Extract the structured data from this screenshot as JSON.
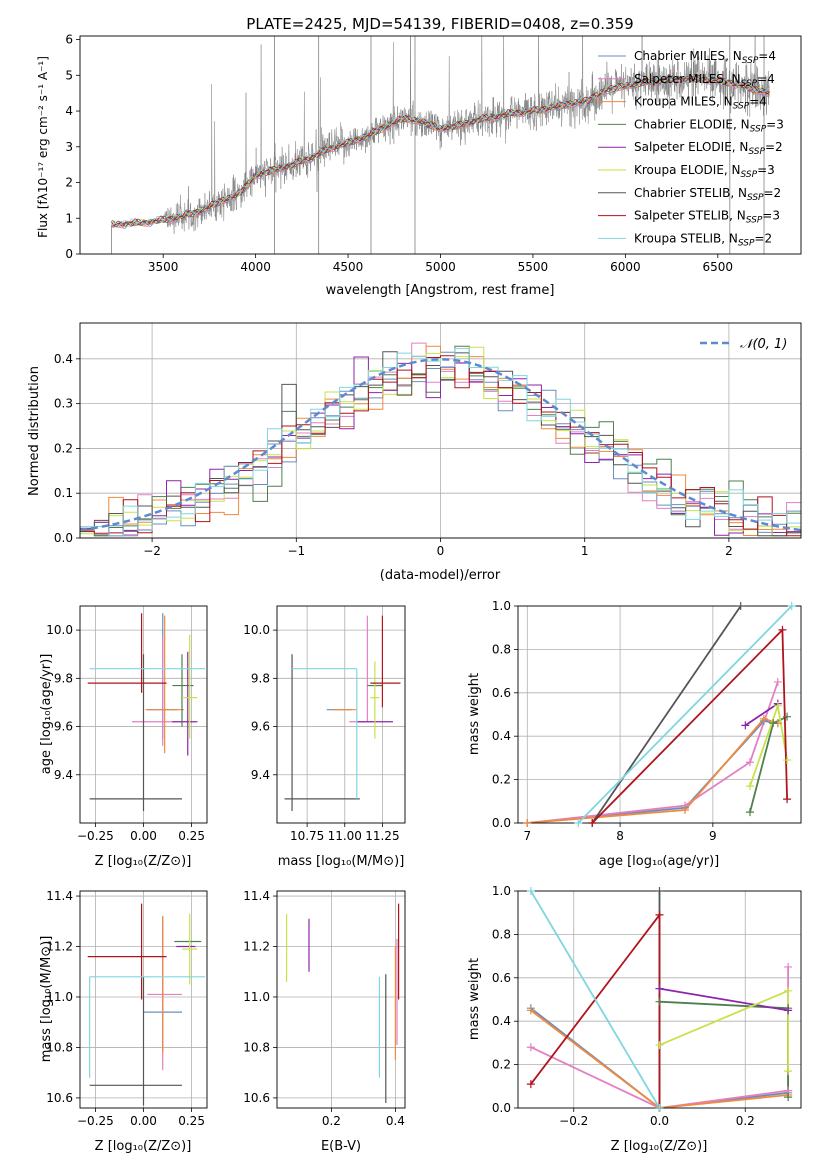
{
  "colors": {
    "chabrier_miles": "#6c8ebf",
    "salpeter_miles": "#e37fc2",
    "kroupa_miles": "#f08a3c",
    "chabrier_elodie": "#4f7f4f",
    "salpeter_elodie": "#8e24aa",
    "kroupa_elodie": "#c7e24a",
    "chabrier_stelib": "#555555",
    "salpeter_stelib": "#b0141c",
    "kroupa_stelib": "#7fd6e0",
    "gaussian": "#5b8bd0",
    "data": "#808080"
  },
  "chart_data": [
    {
      "id": "spectrum",
      "type": "line",
      "title": "PLATE=2425, MJD=54139, FIBERID=0408, z=0.359",
      "xlabel": "wavelength [Angstrom, rest frame]",
      "ylabel": "Flux [fλ10⁻¹⁷ erg cm⁻² s⁻¹ A⁻¹]",
      "xlim": [
        3050,
        6950
      ],
      "ylim": [
        0,
        6.1
      ],
      "xticks": [
        3500,
        4000,
        4500,
        5000,
        5500,
        6000,
        6500
      ],
      "yticks": [
        0,
        1,
        2,
        3,
        4,
        5,
        6
      ],
      "legend": [
        "Chabrier MILES, N_SSP=4",
        "Salpeter MILES, N_SSP=4",
        "Kroupa MILES, N_SSP=4",
        "Chabrier ELODIE, N_SSP=3",
        "Salpeter ELODIE, N_SSP=2",
        "Kroupa ELODIE, N_SSP=3",
        "Chabrier STELIB, N_SSP=2",
        "Salpeter STELIB, N_SSP=3",
        "Kroupa STELIB, N_SSP=2"
      ],
      "legend_position": "upper right",
      "continuum": {
        "x": [
          3220,
          3300,
          3400,
          3500,
          3600,
          3700,
          3800,
          3900,
          3950,
          4000,
          4100,
          4200,
          4300,
          4400,
          4500,
          4600,
          4700,
          4800,
          4900,
          5000,
          5100,
          5200,
          5300,
          5400,
          5500,
          5600,
          5700,
          5800,
          5900,
          6000,
          6100,
          6200,
          6300,
          6400,
          6500,
          6600,
          6700,
          6780
        ],
        "y": [
          0.82,
          0.85,
          0.88,
          0.95,
          1.05,
          1.2,
          1.45,
          1.65,
          1.9,
          2.2,
          2.35,
          2.5,
          2.7,
          2.95,
          3.1,
          3.3,
          3.55,
          3.8,
          3.7,
          3.5,
          3.6,
          3.75,
          3.85,
          3.95,
          4.0,
          4.1,
          4.2,
          4.3,
          4.6,
          4.7,
          4.8,
          4.85,
          4.9,
          4.9,
          4.85,
          4.75,
          4.6,
          4.5
        ]
      },
      "vlines": [
        4102,
        4341,
        4624,
        4862,
        6565,
        6750
      ],
      "grid": false
    },
    {
      "id": "residuals",
      "type": "histogram",
      "xlabel": "(data-model)/error",
      "ylabel": "Normed distribution",
      "xlim": [
        -2.5,
        2.5
      ],
      "ylim": [
        0,
        0.48
      ],
      "xticks": [
        -2,
        -1,
        0,
        1,
        2
      ],
      "yticks": [
        0.0,
        0.1,
        0.2,
        0.3,
        0.4
      ],
      "bin_width": 0.1,
      "legend": [
        "𝒩(0, 1)"
      ],
      "legend_position": "upper right",
      "grid": true
    },
    {
      "id": "age_vs_Z",
      "type": "errorbar",
      "xlabel": "Z [log₁₀(Z/Z⊙)]",
      "ylabel": "age  [log₁₀(age/yr)]",
      "xlim": [
        -0.33,
        0.33
      ],
      "ylim": [
        9.2,
        10.1
      ],
      "xticks": [
        -0.25,
        0.0,
        0.25
      ],
      "yticks": [
        9.4,
        9.6,
        9.8,
        10.0
      ],
      "grid": true
    },
    {
      "id": "age_vs_mass",
      "type": "errorbar",
      "xlabel": "mass [log₁₀(M/M⊙)]",
      "ylabel": "",
      "xlim": [
        10.55,
        11.4
      ],
      "ylim": [
        9.2,
        10.1
      ],
      "xticks": [
        10.75,
        11.0,
        11.25
      ],
      "yticks": [
        9.4,
        9.6,
        9.8,
        10.0
      ],
      "grid": true
    },
    {
      "id": "massweight_vs_age",
      "type": "line",
      "xlabel": "age  [log₁₀(age/yr)]",
      "ylabel": "mass weight",
      "xlim": [
        6.9,
        9.95
      ],
      "ylim": [
        0,
        1.0
      ],
      "xticks": [
        7,
        8,
        9
      ],
      "yticks": [
        0.0,
        0.2,
        0.4,
        0.6,
        0.8,
        1.0
      ],
      "grid": true,
      "series": [
        {
          "key": "chabrier_miles",
          "x": [
            7.0,
            8.7,
            9.55,
            9.7
          ],
          "y": [
            0.0,
            0.07,
            0.47,
            0.46
          ]
        },
        {
          "key": "salpeter_miles",
          "x": [
            7.0,
            8.7,
            9.4,
            9.7
          ],
          "y": [
            0.0,
            0.08,
            0.28,
            0.65
          ]
        },
        {
          "key": "kroupa_miles",
          "x": [
            7.0,
            8.7,
            9.55,
            9.7
          ],
          "y": [
            0.0,
            0.06,
            0.48,
            0.46
          ]
        },
        {
          "key": "chabrier_elodie",
          "x": [
            9.4,
            9.65,
            9.8
          ],
          "y": [
            0.05,
            0.46,
            0.49
          ]
        },
        {
          "key": "salpeter_elodie",
          "x": [
            9.35,
            9.7
          ],
          "y": [
            0.45,
            0.55
          ]
        },
        {
          "key": "kroupa_elodie",
          "x": [
            9.4,
            9.7,
            9.8
          ],
          "y": [
            0.17,
            0.54,
            0.29
          ]
        },
        {
          "key": "chabrier_stelib",
          "x": [
            7.7,
            9.3
          ],
          "y": [
            0.0,
            1.0
          ]
        },
        {
          "key": "salpeter_stelib",
          "x": [
            7.7,
            9.75,
            9.8
          ],
          "y": [
            0.0,
            0.89,
            0.11
          ]
        },
        {
          "key": "kroupa_stelib",
          "x": [
            7.55,
            9.85
          ],
          "y": [
            0.0,
            1.0
          ]
        }
      ]
    },
    {
      "id": "mass_vs_Z",
      "type": "errorbar",
      "xlabel": "Z [log₁₀(Z/Z⊙)]",
      "ylabel": "mass [log₁₀(M/M⊙)]",
      "xlim": [
        -0.33,
        0.33
      ],
      "ylim": [
        10.56,
        11.42
      ],
      "xticks": [
        -0.25,
        0.0,
        0.25
      ],
      "yticks": [
        10.6,
        10.8,
        11.0,
        11.2,
        11.4
      ],
      "grid": true
    },
    {
      "id": "mass_vs_ebv",
      "type": "errorbar",
      "xlabel": "E(B-V)",
      "ylabel": "",
      "xlim": [
        0.03,
        0.43
      ],
      "ylim": [
        10.56,
        11.42
      ],
      "xticks": [
        0.2,
        0.4
      ],
      "yticks": [
        10.6,
        10.8,
        11.0,
        11.2,
        11.4
      ],
      "grid": true
    },
    {
      "id": "massweight_vs_Z",
      "type": "line",
      "xlabel": "Z [log₁₀(Z/Z⊙)]",
      "ylabel": "mass weight",
      "xlim": [
        -0.33,
        0.33
      ],
      "ylim": [
        0,
        1.0
      ],
      "xticks": [
        -0.2,
        0.0,
        0.2
      ],
      "yticks": [
        0.0,
        0.2,
        0.4,
        0.6,
        0.8,
        1.0
      ],
      "grid": true,
      "series": [
        {
          "key": "chabrier_miles",
          "x": [
            -0.3,
            0.0,
            0.3
          ],
          "y": [
            0.46,
            0.0,
            0.07
          ]
        },
        {
          "key": "salpeter_miles",
          "x": [
            -0.3,
            0.0,
            0.3,
            0.3
          ],
          "y": [
            0.28,
            0.0,
            0.08,
            0.65
          ]
        },
        {
          "key": "kroupa_miles",
          "x": [
            -0.3,
            0.0,
            0.3
          ],
          "y": [
            0.45,
            0.0,
            0.06
          ]
        },
        {
          "key": "chabrier_elodie",
          "x": [
            0.0,
            0.3,
            0.3
          ],
          "y": [
            0.49,
            0.46,
            0.05
          ]
        },
        {
          "key": "salpeter_elodie",
          "x": [
            0.0,
            0.3
          ],
          "y": [
            0.55,
            0.45
          ]
        },
        {
          "key": "kroupa_elodie",
          "x": [
            0.0,
            0.3,
            0.3
          ],
          "y": [
            0.29,
            0.54,
            0.17
          ]
        },
        {
          "key": "chabrier_stelib",
          "x": [
            0.0,
            0.0
          ],
          "y": [
            0.0,
            1.0
          ]
        },
        {
          "key": "salpeter_stelib",
          "x": [
            -0.3,
            0.0,
            0.0
          ],
          "y": [
            0.11,
            0.89,
            0.0
          ]
        },
        {
          "key": "kroupa_stelib",
          "x": [
            -0.3,
            0.0
          ],
          "y": [
            1.0,
            0.0
          ]
        }
      ]
    }
  ],
  "errorbars": {
    "age_vs_Z": [
      {
        "key": "chabrier_miles",
        "x": 0.1,
        "xerr": [
          0.08,
          0.08
        ],
        "y": 9.67,
        "yerr": [
          0.12,
          0.4
        ]
      },
      {
        "key": "salpeter_miles",
        "x": 0.1,
        "xerr": [
          0.16,
          0.08
        ],
        "y": 9.62,
        "yerr": [
          0.1,
          0.35
        ]
      },
      {
        "key": "kroupa_miles",
        "x": 0.11,
        "xerr": [
          0.1,
          0.1
        ],
        "y": 9.67,
        "yerr": [
          0.18,
          0.39
        ]
      },
      {
        "key": "chabrier_elodie",
        "x": 0.2,
        "xerr": [
          0.05,
          0.06
        ],
        "y": 9.77,
        "yerr": [
          0.17,
          0.13
        ]
      },
      {
        "key": "salpeter_elodie",
        "x": 0.23,
        "xerr": [
          0.08,
          0.05
        ],
        "y": 9.62,
        "yerr": [
          0.14,
          0.29
        ]
      },
      {
        "key": "kroupa_elodie",
        "x": 0.24,
        "xerr": [
          0.04,
          0.04
        ],
        "y": 9.72,
        "yerr": [
          0.17,
          0.26
        ]
      },
      {
        "key": "chabrier_stelib",
        "x": 0.0,
        "xerr": [
          0.28,
          0.2
        ],
        "y": 9.3,
        "yerr": [
          0.05,
          0.6
        ]
      },
      {
        "key": "salpeter_stelib",
        "x": -0.01,
        "xerr": [
          0.28,
          0.13
        ],
        "y": 9.78,
        "yerr": [
          0.04,
          0.29
        ]
      },
      {
        "key": "kroupa_stelib",
        "x": -0.28,
        "xerr": [
          0.0,
          0.6
        ],
        "y": 9.84,
        "yerr": [
          0.0,
          0.0
        ]
      }
    ],
    "age_vs_mass": [
      {
        "key": "chabrier_miles",
        "x": 10.95,
        "xerr": [
          0.07,
          0.1
        ],
        "y": 9.67,
        "yerr": [
          0.0,
          0.0
        ]
      },
      {
        "key": "salpeter_miles",
        "x": 11.15,
        "xerr": [
          0.12,
          0.06
        ],
        "y": 9.62,
        "yerr": [
          0.0,
          0.44
        ]
      },
      {
        "key": "kroupa_miles",
        "x": 11.0,
        "xerr": [
          0.08,
          0.08
        ],
        "y": 9.67,
        "yerr": [
          0.0,
          0.0
        ]
      },
      {
        "key": "chabrier_elodie",
        "x": 11.2,
        "xerr": [
          0.05,
          0.05
        ],
        "y": 9.77,
        "yerr": [
          0.0,
          0.0
        ]
      },
      {
        "key": "salpeter_elodie",
        "x": 11.2,
        "xerr": [
          0.12,
          0.12
        ],
        "y": 9.62,
        "yerr": [
          0.0,
          0.0
        ]
      },
      {
        "key": "kroupa_elodie",
        "x": 11.2,
        "xerr": [
          0.03,
          0.03
        ],
        "y": 9.72,
        "yerr": [
          0.17,
          0.15
        ]
      },
      {
        "key": "chabrier_stelib",
        "x": 10.65,
        "xerr": [
          0.05,
          0.45
        ],
        "y": 9.3,
        "yerr": [
          0.05,
          0.6
        ]
      },
      {
        "key": "salpeter_stelib",
        "x": 11.25,
        "xerr": [
          0.08,
          0.12
        ],
        "y": 9.78,
        "yerr": [
          0.1,
          0.28
        ]
      },
      {
        "key": "kroupa_stelib",
        "x": 11.08,
        "xerr": [
          0.43,
          0.0
        ],
        "y": 9.84,
        "yerr": [
          0.54,
          0.0
        ]
      }
    ],
    "mass_vs_Z": [
      {
        "key": "chabrier_miles",
        "x": 0.1,
        "xerr": [
          0.1,
          0.1
        ],
        "y": 10.94,
        "yerr": [
          0.16,
          0.38
        ]
      },
      {
        "key": "salpeter_miles",
        "x": 0.1,
        "xerr": [
          0.08,
          0.1
        ],
        "y": 11.01,
        "yerr": [
          0.3,
          0.28
        ]
      },
      {
        "key": "kroupa_miles",
        "x": 0.1,
        "xerr": [
          0.0,
          0.0
        ],
        "y": 10.94,
        "yerr": [
          0.16,
          0.38
        ]
      },
      {
        "key": "chabrier_elodie",
        "x": 0.22,
        "xerr": [
          0.06,
          0.08
        ],
        "y": 11.22,
        "yerr": [
          0.0,
          0.0
        ]
      },
      {
        "key": "salpeter_elodie",
        "x": 0.22,
        "xerr": [
          0.05,
          0.05
        ],
        "y": 11.2,
        "yerr": [
          0.0,
          0.0
        ]
      },
      {
        "key": "kroupa_elodie",
        "x": 0.24,
        "xerr": [
          0.04,
          0.04
        ],
        "y": 11.19,
        "yerr": [
          0.14,
          0.14
        ]
      },
      {
        "key": "chabrier_stelib",
        "x": 0.0,
        "xerr": [
          0.28,
          0.2
        ],
        "y": 10.65,
        "yerr": [
          0.08,
          0.43
        ]
      },
      {
        "key": "salpeter_stelib",
        "x": -0.01,
        "xerr": [
          0.28,
          0.13
        ],
        "y": 11.16,
        "yerr": [
          0.17,
          0.21
        ]
      },
      {
        "key": "kroupa_stelib",
        "x": -0.28,
        "xerr": [
          0.0,
          0.6
        ],
        "y": 11.08,
        "yerr": [
          0.4,
          0.0
        ]
      }
    ],
    "mass_vs_ebv": [
      {
        "key": "kroupa_elodie",
        "x": 0.06,
        "xerr": [
          0.0,
          0.0
        ],
        "y": 11.2,
        "yerr": [
          0.14,
          0.13
        ]
      },
      {
        "key": "salpeter_elodie",
        "x": 0.13,
        "xerr": [
          0.0,
          0.0
        ],
        "y": 11.2,
        "yerr": [
          0.1,
          0.11
        ]
      },
      {
        "key": "kroupa_stelib",
        "x": 0.35,
        "xerr": [
          0.0,
          0.0
        ],
        "y": 10.87,
        "yerr": [
          0.19,
          0.21
        ]
      },
      {
        "key": "chabrier_stelib",
        "x": 0.37,
        "xerr": [
          0.0,
          0.0
        ],
        "y": 10.83,
        "yerr": [
          0.25,
          0.26
        ]
      },
      {
        "key": "kroupa_miles",
        "x": 0.4,
        "xerr": [
          0.0,
          0.0
        ],
        "y": 10.95,
        "yerr": [
          0.2,
          0.25
        ]
      },
      {
        "key": "salpeter_miles",
        "x": 0.405,
        "xerr": [
          0.0,
          0.0
        ],
        "y": 11.01,
        "yerr": [
          0.2,
          0.22
        ]
      },
      {
        "key": "salpeter_stelib",
        "x": 0.41,
        "xerr": [
          0.0,
          0.0
        ],
        "y": 11.16,
        "yerr": [
          0.17,
          0.21
        ]
      }
    ]
  }
}
